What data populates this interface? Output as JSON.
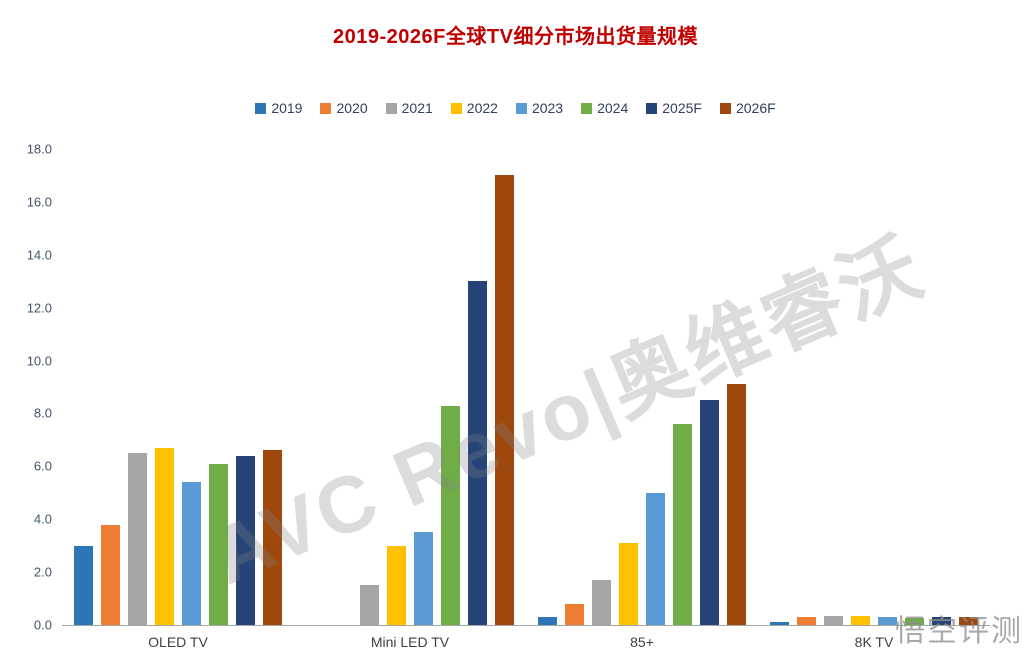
{
  "title": "2019-2026F全球TV细分市场出货量规模",
  "watermark_brand": "AVC Revo|奥维睿沃",
  "watermark_corner": "悟空评测",
  "chart_data": {
    "type": "bar",
    "title": "2019-2026F全球TV细分市场出货量规模",
    "categories": [
      "OLED TV",
      "Mini LED TV",
      "85+",
      "8K TV"
    ],
    "series": [
      {
        "name": "2019",
        "color": "#2E75B6",
        "values": [
          3.0,
          0,
          0.3,
          0.1
        ]
      },
      {
        "name": "2020",
        "color": "#ED7D31",
        "values": [
          3.8,
          0,
          0.8,
          0.3
        ]
      },
      {
        "name": "2021",
        "color": "#A5A5A5",
        "values": [
          6.5,
          1.5,
          1.7,
          0.35
        ]
      },
      {
        "name": "2022",
        "color": "#FFC000",
        "values": [
          6.7,
          3.0,
          3.1,
          0.35
        ]
      },
      {
        "name": "2023",
        "color": "#5B9BD5",
        "values": [
          5.4,
          3.5,
          5.0,
          0.3
        ]
      },
      {
        "name": "2024",
        "color": "#70AD47",
        "values": [
          6.1,
          8.3,
          7.6,
          0.25
        ]
      },
      {
        "name": "2025F",
        "color": "#264478",
        "values": [
          6.4,
          13.0,
          8.5,
          0.3
        ]
      },
      {
        "name": "2026F",
        "color": "#9E480E",
        "values": [
          6.6,
          17.0,
          9.1,
          0.3
        ]
      }
    ],
    "ylim": [
      0,
      18
    ],
    "ytick_step": 2,
    "ytick_labels": [
      "18.0",
      "16.0",
      "14.0",
      "12.0",
      "10.0",
      "8.0",
      "6.0",
      "4.0",
      "2.0",
      "0.0"
    ],
    "grid": false,
    "legend_position": "top"
  }
}
